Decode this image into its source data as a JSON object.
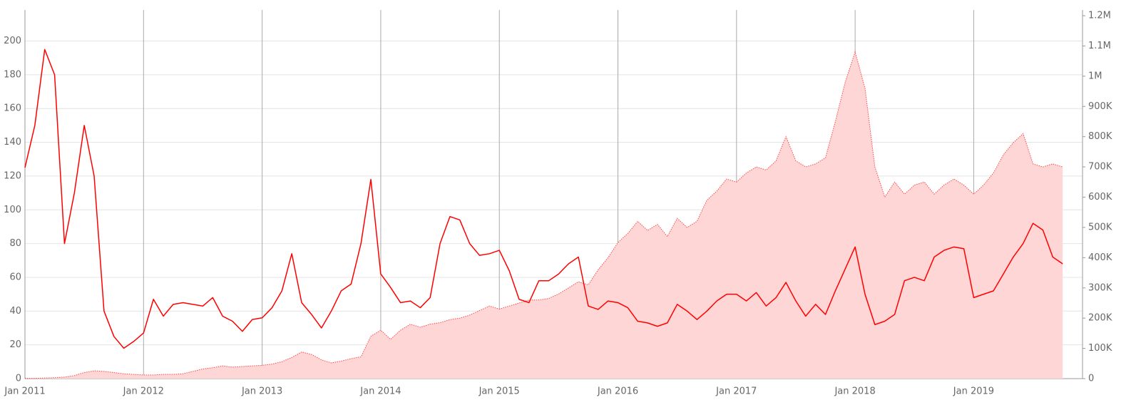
{
  "chart_data": {
    "type": "line-area",
    "x": [
      "2011-01",
      "2011-02",
      "2011-03",
      "2011-04",
      "2011-05",
      "2011-06",
      "2011-07",
      "2011-08",
      "2011-09",
      "2011-10",
      "2011-11",
      "2011-12",
      "2012-01",
      "2012-02",
      "2012-03",
      "2012-04",
      "2012-05",
      "2012-06",
      "2012-07",
      "2012-08",
      "2012-09",
      "2012-10",
      "2012-11",
      "2012-12",
      "2013-01",
      "2013-02",
      "2013-03",
      "2013-04",
      "2013-05",
      "2013-06",
      "2013-07",
      "2013-08",
      "2013-09",
      "2013-10",
      "2013-11",
      "2013-12",
      "2014-01",
      "2014-02",
      "2014-03",
      "2014-04",
      "2014-05",
      "2014-06",
      "2014-07",
      "2014-08",
      "2014-09",
      "2014-10",
      "2014-11",
      "2014-12",
      "2015-01",
      "2015-02",
      "2015-03",
      "2015-04",
      "2015-05",
      "2015-06",
      "2015-07",
      "2015-08",
      "2015-09",
      "2015-10",
      "2015-11",
      "2015-12",
      "2016-01",
      "2016-02",
      "2016-03",
      "2016-04",
      "2016-05",
      "2016-06",
      "2016-07",
      "2016-08",
      "2016-09",
      "2016-10",
      "2016-11",
      "2016-12",
      "2017-01",
      "2017-02",
      "2017-03",
      "2017-04",
      "2017-05",
      "2017-06",
      "2017-07",
      "2017-08",
      "2017-09",
      "2017-10",
      "2017-11",
      "2017-12",
      "2018-01",
      "2018-02",
      "2018-03",
      "2018-04",
      "2018-05",
      "2018-06",
      "2018-07",
      "2018-08",
      "2018-09",
      "2018-10",
      "2018-11",
      "2018-12",
      "2019-01",
      "2019-02",
      "2019-03",
      "2019-04",
      "2019-05",
      "2019-06",
      "2019-07",
      "2019-08",
      "2019-09",
      "2019-10"
    ],
    "series": [
      {
        "kind": "area",
        "axis": "y2",
        "color": "#ff0000",
        "fill": "#ffd6d6",
        "values": [
          1000,
          1000,
          2000,
          3000,
          5000,
          10000,
          20000,
          26000,
          24000,
          20000,
          16000,
          14000,
          12000,
          12000,
          14000,
          14000,
          16000,
          24000,
          32000,
          36000,
          42000,
          38000,
          40000,
          42000,
          44000,
          48000,
          56000,
          70000,
          88000,
          80000,
          62000,
          52000,
          58000,
          66000,
          72000,
          140000,
          160000,
          130000,
          160000,
          180000,
          170000,
          180000,
          185000,
          195000,
          200000,
          210000,
          225000,
          240000,
          230000,
          240000,
          250000,
          260000,
          260000,
          265000,
          280000,
          300000,
          320000,
          310000,
          360000,
          400000,
          450000,
          480000,
          520000,
          490000,
          510000,
          470000,
          530000,
          500000,
          520000,
          590000,
          620000,
          660000,
          650000,
          680000,
          700000,
          690000,
          720000,
          800000,
          720000,
          700000,
          710000,
          730000,
          850000,
          980000,
          1080000,
          960000,
          700000,
          600000,
          650000,
          610000,
          640000,
          650000,
          610000,
          640000,
          660000,
          640000,
          610000,
          640000,
          680000,
          740000,
          780000,
          810000,
          710000,
          700000,
          710000,
          700000
        ]
      },
      {
        "kind": "line",
        "color": "#ff0000",
        "values": [
          125,
          150,
          195,
          180,
          80,
          110,
          150,
          120,
          40,
          25,
          18,
          22,
          27,
          47,
          37,
          44,
          45,
          44,
          43,
          48,
          37,
          34,
          28,
          35,
          36,
          42,
          52,
          74,
          45,
          38,
          30,
          40,
          52,
          56,
          80,
          118,
          62,
          54,
          45,
          46,
          42,
          48,
          80,
          96,
          94,
          80,
          73,
          74,
          76,
          64,
          47,
          45,
          58,
          58,
          62,
          68,
          72,
          43,
          41,
          46,
          45,
          42,
          34,
          33,
          31,
          33,
          44,
          40,
          35,
          40,
          46,
          50,
          50,
          46,
          51,
          43,
          48,
          57,
          46,
          37,
          44,
          38,
          52,
          65,
          78,
          50,
          32,
          34,
          38,
          58,
          60,
          58,
          72,
          76,
          78,
          77,
          48,
          50,
          52,
          62,
          72,
          80,
          92,
          88,
          72,
          68
        ]
      }
    ],
    "xlim": [
      "2011-01",
      "2019-11"
    ],
    "xticks": [
      {
        "value": "2011-01",
        "label": "Jan 2011"
      },
      {
        "value": "2012-01",
        "label": "Jan 2012"
      },
      {
        "value": "2013-01",
        "label": "Jan 2013"
      },
      {
        "value": "2014-01",
        "label": "Jan 2014"
      },
      {
        "value": "2015-01",
        "label": "Jan 2015"
      },
      {
        "value": "2016-01",
        "label": "Jan 2016"
      },
      {
        "value": "2017-01",
        "label": "Jan 2017"
      },
      {
        "value": "2018-01",
        "label": "Jan 2018"
      },
      {
        "value": "2019-01",
        "label": "Jan 2019"
      }
    ],
    "ylim": [
      0,
      215
    ],
    "yticks": [
      0,
      20,
      40,
      60,
      80,
      100,
      120,
      140,
      160,
      180,
      200
    ],
    "y2lim": [
      0,
      1200000
    ],
    "y2ticks": [
      0,
      {
        "value": 100000,
        "label": "100K"
      },
      {
        "value": 200000,
        "label": "200K"
      },
      {
        "value": 300000,
        "label": "300K"
      },
      {
        "value": 400000,
        "label": "400K"
      },
      {
        "value": 500000,
        "label": "500K"
      },
      {
        "value": 600000,
        "label": "600K"
      },
      {
        "value": 700000,
        "label": "700K"
      },
      {
        "value": 800000,
        "label": "800K"
      },
      {
        "value": 900000,
        "label": "900K"
      },
      {
        "value": 1000000,
        "label": "1M"
      },
      {
        "value": 1100000,
        "label": "1.1M"
      },
      {
        "value": 1200000,
        "label": "1.2M"
      }
    ],
    "grid": true
  }
}
